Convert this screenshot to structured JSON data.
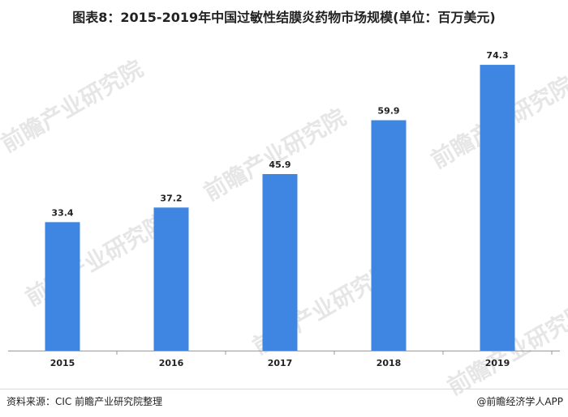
{
  "title": "图表8：2015-2019年中国过敏性结膜炎药物市场规模(单位：百万美元)",
  "footer": {
    "source": "资料来源：CIC 前瞻产业研究院整理",
    "brand": "@前瞻经济学人APP"
  },
  "watermark": "前瞻产业研究院",
  "colors": {
    "bar": "#3f86e2",
    "axis": "#9a9a9a"
  },
  "chart_data": {
    "type": "bar",
    "categories": [
      "2015",
      "2016",
      "2017",
      "2018",
      "2019"
    ],
    "values": [
      33.4,
      37.2,
      45.9,
      59.9,
      74.3
    ],
    "ylim": [
      0,
      80
    ],
    "grid": false,
    "xlabel": "",
    "ylabel": ""
  }
}
